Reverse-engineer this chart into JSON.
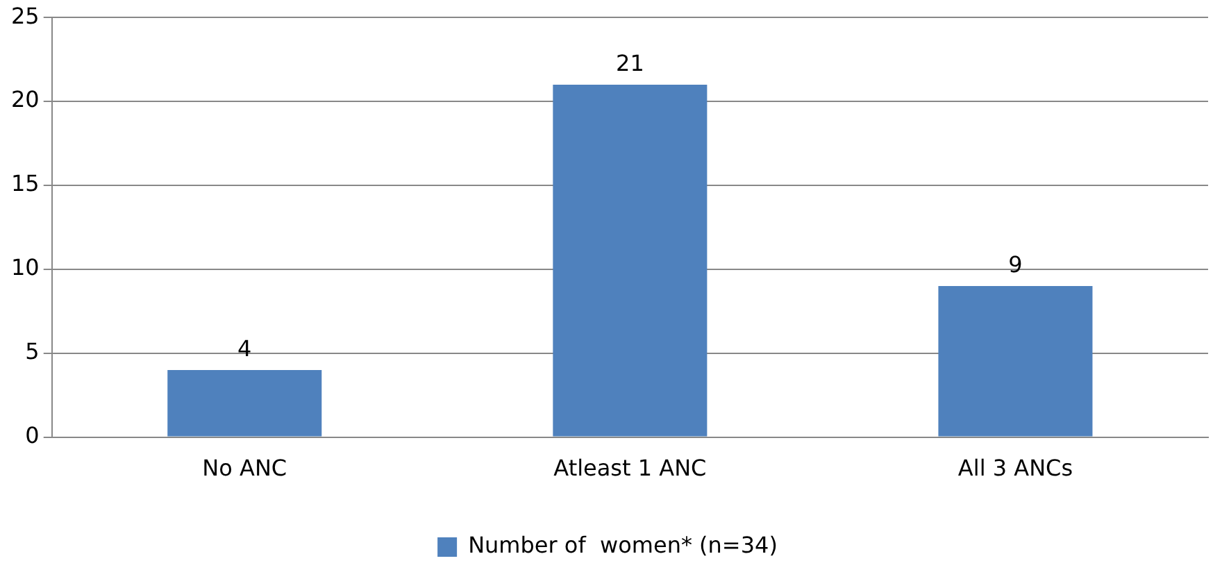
{
  "chart_data": {
    "type": "bar",
    "categories": [
      "No ANC",
      "Atleast 1 ANC",
      "All 3 ANCs"
    ],
    "series": [
      {
        "name": "Number of  women* (n=34)",
        "color": "#4f81bd",
        "values": [
          4,
          21,
          9
        ]
      }
    ],
    "ylim": [
      0,
      25
    ],
    "yticks": [
      0,
      5,
      10,
      15,
      20,
      25
    ],
    "grid": "y",
    "legend": "bottom",
    "data_labels": true
  }
}
